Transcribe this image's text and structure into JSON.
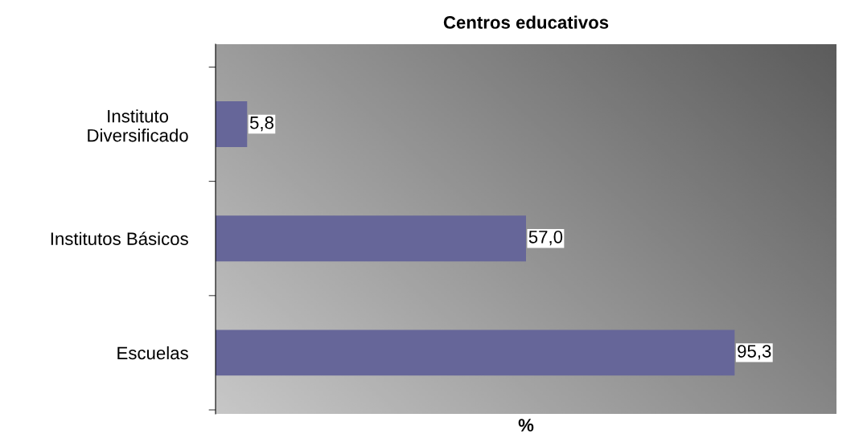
{
  "chart_data": {
    "type": "bar",
    "orientation": "horizontal",
    "title": "Centros educativos",
    "xlabel": "%",
    "categories": [
      "Instituto\nDiversificado",
      "Institutos Básicos",
      "Escuelas"
    ],
    "values": [
      5.8,
      57.0,
      95.3
    ],
    "value_labels": [
      "5,8",
      "57,0",
      "95,3"
    ],
    "color": "#666699",
    "xlim": [
      0,
      114
    ]
  }
}
